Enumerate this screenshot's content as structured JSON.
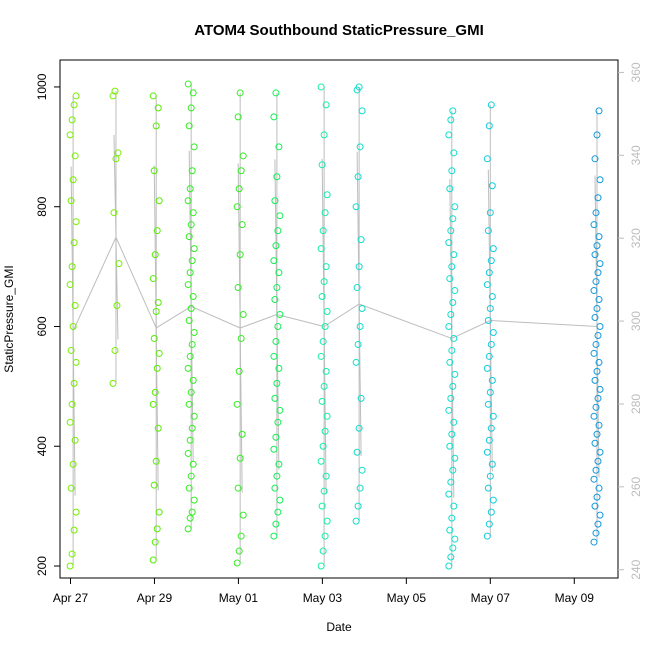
{
  "chart_data": {
    "type": "scatter",
    "title": "ATOM4 Southbound StaticPressure_GMI",
    "xlabel": "Date",
    "ylabel": "StaticPressure_GMI",
    "xlim": [
      "2016-04-26T18:00",
      "2016-05-10T01:00"
    ],
    "ylim": [
      180,
      1045
    ],
    "y2lim": [
      238,
      363
    ],
    "x_ticks": [
      {
        "date": "2016-04-27",
        "label": "Apr 27"
      },
      {
        "date": "2016-04-29",
        "label": "Apr 29"
      },
      {
        "date": "2016-05-01",
        "label": "May 01"
      },
      {
        "date": "2016-05-03",
        "label": "May 03"
      },
      {
        "date": "2016-05-05",
        "label": "May 05"
      },
      {
        "date": "2016-05-07",
        "label": "May 07"
      },
      {
        "date": "2016-05-09",
        "label": "May 09"
      }
    ],
    "y_ticks": [
      200,
      400,
      600,
      800,
      1000
    ],
    "y2_ticks": [
      240,
      260,
      280,
      300,
      320,
      340,
      360
    ],
    "grid": false,
    "legend": "none",
    "point_colors": [
      "#77ee00",
      "#55ee00",
      "#33ee22",
      "#11ee55",
      "#11eeaa",
      "#11ddcc",
      "#11ccdd",
      "#1199dd"
    ],
    "line_color": "#bdbdbd",
    "profiles": [
      {
        "date": "2016-04-27T01:30",
        "values": [
          200,
          220,
          260,
          290,
          330,
          370,
          410,
          440,
          470,
          505,
          540,
          560,
          600,
          635,
          670,
          700,
          740,
          775,
          810,
          845,
          885,
          920,
          945,
          970,
          985
        ]
      },
      {
        "date": "2016-04-28T02:00",
        "values": [
          505,
          560,
          635,
          705,
          790,
          880,
          890,
          985,
          993
        ]
      },
      {
        "date": "2016-04-29T01:00",
        "values": [
          210,
          240,
          262,
          290,
          335,
          375,
          430,
          470,
          490,
          530,
          555,
          580,
          625,
          640,
          680,
          720,
          760,
          810,
          860,
          935,
          965,
          985
        ]
      },
      {
        "date": "2016-04-29T21:00",
        "values": [
          262,
          280,
          290,
          310,
          330,
          350,
          370,
          388,
          410,
          430,
          450,
          470,
          490,
          510,
          530,
          550,
          570,
          590,
          610,
          630,
          650,
          670,
          690,
          710,
          730,
          750,
          770,
          790,
          810,
          830,
          860,
          900,
          935,
          965,
          990,
          1005
        ]
      },
      {
        "date": "2016-05-01T01:00",
        "values": [
          205,
          225,
          250,
          285,
          330,
          380,
          420,
          470,
          525,
          580,
          620,
          665,
          720,
          770,
          800,
          830,
          860,
          885,
          950,
          990
        ]
      },
      {
        "date": "2016-05-01T22:00",
        "values": [
          250,
          270,
          290,
          310,
          330,
          350,
          370,
          395,
          415,
          440,
          460,
          480,
          505,
          530,
          550,
          575,
          600,
          620,
          645,
          665,
          690,
          710,
          735,
          760,
          785,
          810,
          850,
          900,
          950,
          990
        ]
      },
      {
        "date": "2016-05-03T01:00",
        "values": [
          200,
          225,
          250,
          275,
          300,
          325,
          350,
          375,
          400,
          425,
          450,
          475,
          500,
          525,
          550,
          575,
          600,
          625,
          650,
          675,
          700,
          730,
          760,
          790,
          820,
          870,
          920,
          970,
          1000
        ]
      },
      {
        "date": "2016-05-03T21:00",
        "values": [
          275,
          300,
          330,
          360,
          390,
          430,
          480,
          540,
          570,
          600,
          630,
          665,
          700,
          745,
          800,
          850,
          900,
          960,
          995,
          1000
        ]
      },
      {
        "date": "2016-05-06T02:00",
        "values": [
          200,
          215,
          230,
          245,
          260,
          280,
          300,
          320,
          340,
          360,
          380,
          400,
          420,
          440,
          460,
          480,
          500,
          520,
          540,
          560,
          580,
          600,
          620,
          640,
          660,
          680,
          700,
          720,
          740,
          760,
          780,
          800,
          830,
          860,
          890,
          920,
          945,
          960
        ]
      },
      {
        "date": "2016-05-07T00:00",
        "values": [
          250,
          270,
          290,
          310,
          330,
          350,
          370,
          390,
          410,
          430,
          450,
          470,
          490,
          510,
          530,
          550,
          570,
          590,
          610,
          630,
          650,
          670,
          690,
          710,
          730,
          760,
          790,
          835,
          880,
          935,
          970
        ]
      },
      {
        "date": "2016-05-09T13:00",
        "values": [
          240,
          255,
          270,
          285,
          300,
          315,
          330,
          345,
          360,
          375,
          390,
          405,
          420,
          435,
          450,
          465,
          480,
          495,
          510,
          525,
          540,
          555,
          570,
          585,
          600,
          615,
          630,
          645,
          660,
          675,
          690,
          705,
          720,
          735,
          750,
          770,
          790,
          815,
          845,
          880,
          920,
          960
        ]
      }
    ]
  }
}
